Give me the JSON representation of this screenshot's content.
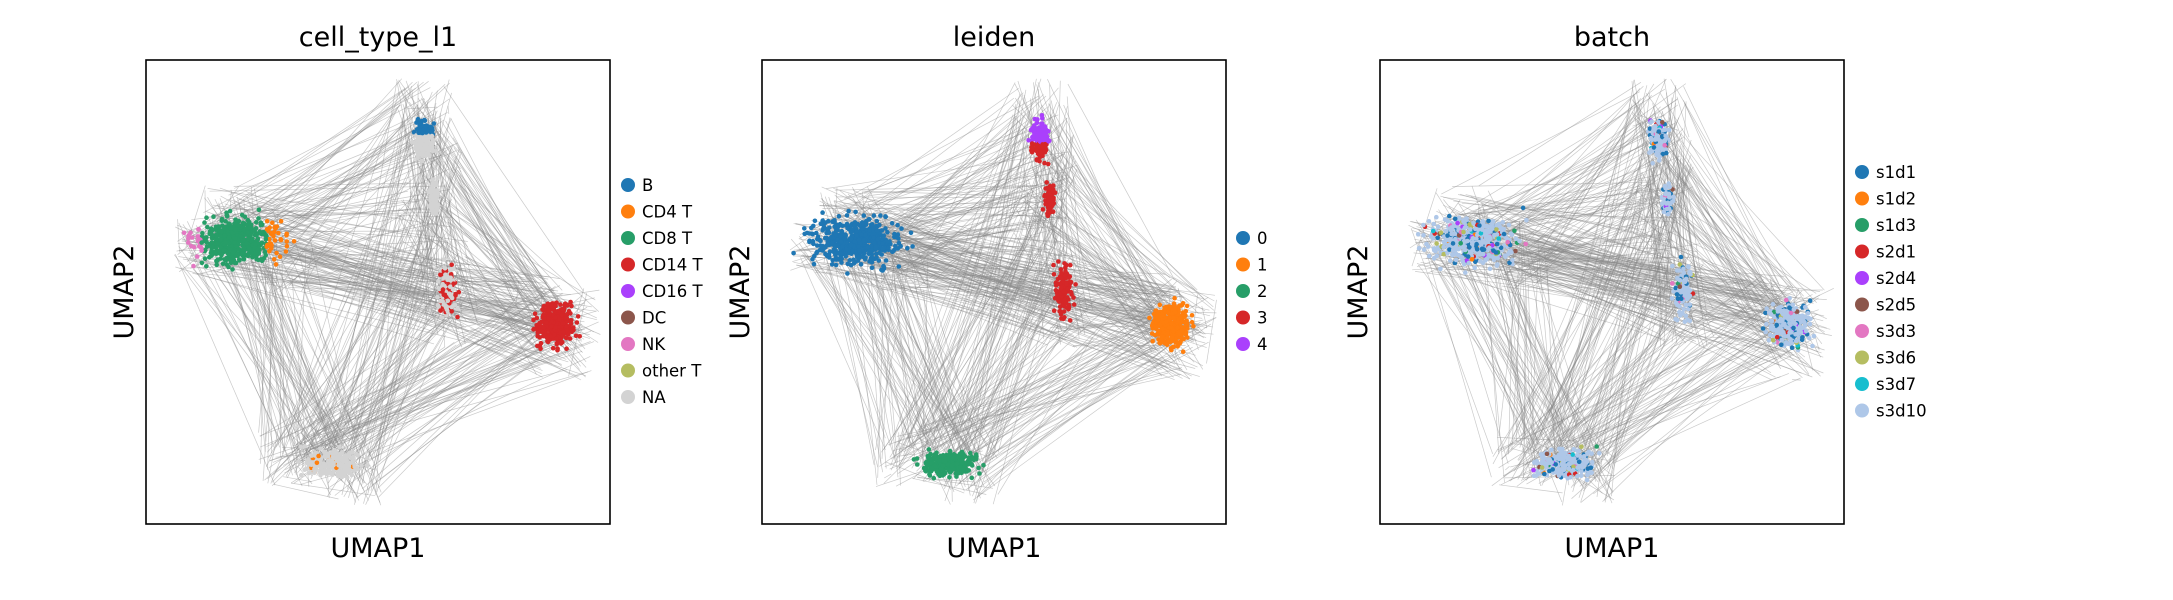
{
  "figure": {
    "background": "#ffffff",
    "edge_color": "#8a8a8a"
  },
  "chart_data": [
    {
      "type": "scatter",
      "title": "cell_type_l1",
      "xlabel": "UMAP1",
      "ylabel": "UMAP2",
      "grid": false,
      "legend_position": "right",
      "categories": [
        {
          "name": "B",
          "color": "#1f77b4"
        },
        {
          "name": "CD4 T",
          "color": "#ff7f0e"
        },
        {
          "name": "CD8 T",
          "color": "#279e68"
        },
        {
          "name": "CD14 T",
          "color": "#d62728"
        },
        {
          "name": "CD16 T",
          "color": "#aa40fc"
        },
        {
          "name": "DC",
          "color": "#8c564b"
        },
        {
          "name": "NK",
          "color": "#e377c2"
        },
        {
          "name": "other T",
          "color": "#b5bd61"
        },
        {
          "name": "NA",
          "color": "#d3d3d3"
        }
      ]
    },
    {
      "type": "scatter",
      "title": "leiden",
      "xlabel": "UMAP1",
      "ylabel": "UMAP2",
      "grid": false,
      "legend_position": "right",
      "categories": [
        {
          "name": "0",
          "color": "#1f77b4"
        },
        {
          "name": "1",
          "color": "#ff7f0e"
        },
        {
          "name": "2",
          "color": "#279e68"
        },
        {
          "name": "3",
          "color": "#d62728"
        },
        {
          "name": "4",
          "color": "#aa40fc"
        }
      ]
    },
    {
      "type": "scatter",
      "title": "batch",
      "xlabel": "UMAP1",
      "ylabel": "UMAP2",
      "grid": false,
      "legend_position": "right",
      "categories": [
        {
          "name": "s1d1",
          "color": "#1f77b4"
        },
        {
          "name": "s1d2",
          "color": "#ff7f0e"
        },
        {
          "name": "s1d3",
          "color": "#279e68"
        },
        {
          "name": "s2d1",
          "color": "#d62728"
        },
        {
          "name": "s2d4",
          "color": "#aa40fc"
        },
        {
          "name": "s2d5",
          "color": "#8c564b"
        },
        {
          "name": "s3d3",
          "color": "#e377c2"
        },
        {
          "name": "s3d6",
          "color": "#b5bd61"
        },
        {
          "name": "s3d7",
          "color": "#17becf"
        },
        {
          "name": "s3d10",
          "color": "#aec7e8"
        }
      ]
    }
  ]
}
